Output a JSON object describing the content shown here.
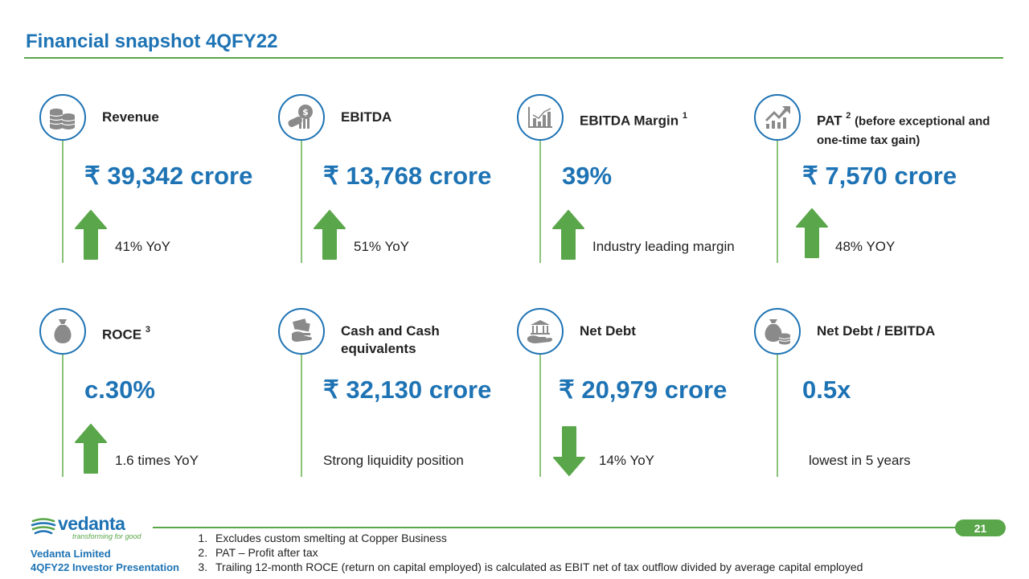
{
  "header": {
    "title": "Financial snapshot 4QFY22"
  },
  "colors": {
    "accent_blue": "#1e73b4",
    "accent_green": "#5aa64a",
    "icon_grey": "#8a8a8a"
  },
  "metrics": [
    {
      "label": "Revenue",
      "sup": "",
      "label_small": "",
      "value": "₹ 39,342 crore",
      "arrow": "up",
      "note": "41% YoY",
      "icon": "coins-icon"
    },
    {
      "label": "EBITDA",
      "sup": "",
      "label_small": "",
      "value": "₹ 13,768 crore",
      "arrow": "up",
      "note": "51% YoY",
      "icon": "money-hand-icon"
    },
    {
      "label": "EBITDA Margin ",
      "sup": "1",
      "label_small": "",
      "value": "39%",
      "arrow": "up",
      "note": "Industry leading margin",
      "icon": "bar-chart-icon"
    },
    {
      "label": "PAT ",
      "sup": "2",
      "label_small": "(before exceptional and one-time tax gain)",
      "value": "₹ 7,570 crore",
      "arrow": "up",
      "note": "48% YOY",
      "icon": "trend-up-icon"
    },
    {
      "label": "ROCE ",
      "sup": "3",
      "label_small": "",
      "value": "c.30%",
      "arrow": "up",
      "note": "1.6 times YoY",
      "icon": "money-bag-icon"
    },
    {
      "label": "Cash and Cash equivalents",
      "sup": "",
      "label_small": "",
      "value": "₹ 32,130 crore",
      "arrow": "none",
      "note": "Strong liquidity position",
      "icon": "cash-hand-icon"
    },
    {
      "label": "Net Debt",
      "sup": "",
      "label_small": "",
      "value": "₹ 20,979 crore",
      "arrow": "down",
      "note": "14% YoY",
      "icon": "bank-hand-icon"
    },
    {
      "label": "Net Debt / EBITDA",
      "sup": "",
      "label_small": "",
      "value": "0.5x",
      "arrow": "none",
      "note": "lowest in 5 years",
      "icon": "bag-coins-icon"
    }
  ],
  "footer": {
    "logo_word": "vedanta",
    "logo_tagline": "transforming for good",
    "company": "Vedanta Limited",
    "presentation": "4QFY22 Investor Presentation",
    "page_number": "21",
    "footnotes": [
      "Excludes custom smelting at Copper Business",
      "PAT – Profit after tax",
      "Trailing 12-month ROCE (return on capital employed) is calculated as EBIT net of tax outflow divided by average capital employed"
    ]
  }
}
